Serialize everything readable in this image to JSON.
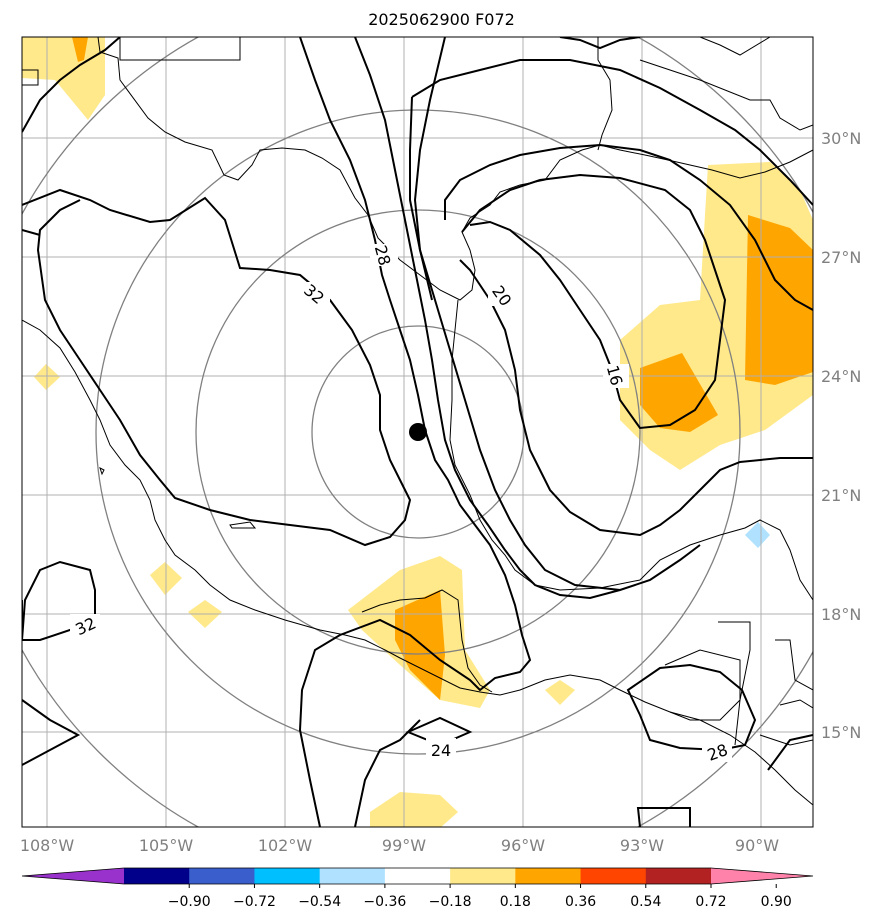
{
  "title": "2025062900 F072",
  "map": {
    "lon_labels": [
      "108°W",
      "105°W",
      "102°W",
      "99°W",
      "96°W",
      "93°W",
      "90°W"
    ],
    "lat_labels": [
      "30°N",
      "27°N",
      "24°N",
      "21°N",
      "18°N",
      "15°N"
    ],
    "contour_labels": [
      "32",
      "28",
      "20",
      "16",
      "32",
      "24",
      "28"
    ],
    "center_marker": "storm-center"
  },
  "colorbar": {
    "ticks": [
      "−0.90",
      "−0.72",
      "−0.54",
      "−0.36",
      "−0.18",
      "0.18",
      "0.36",
      "0.54",
      "0.72",
      "0.90"
    ],
    "colors": [
      "#9932cc",
      "#00008b",
      "#3a5fcd",
      "#00bfff",
      "#b0e2ff",
      "#ffffff",
      "#ffe98a",
      "#ffa500",
      "#ff4500",
      "#b22222",
      "#ff82ab"
    ]
  }
}
